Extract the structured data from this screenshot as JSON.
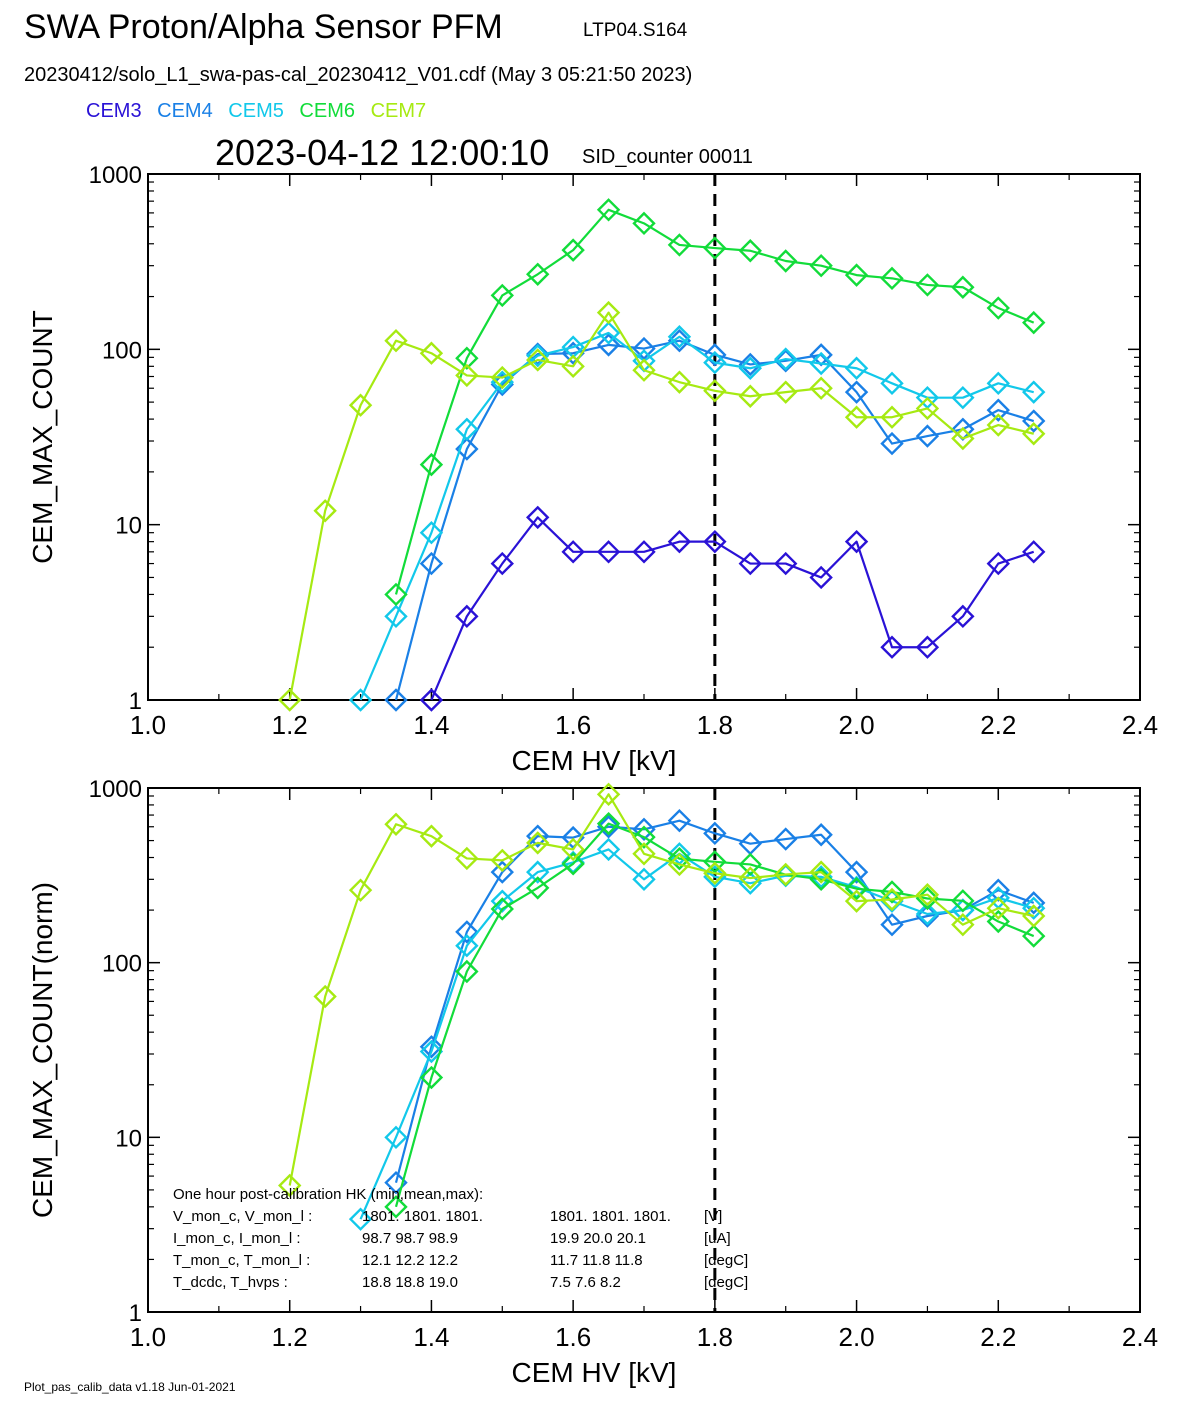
{
  "header": {
    "title": "SWA Proton/Alpha Sensor PFM",
    "title_id": "LTP04.S164",
    "file_line": "20230412/solo_L1_swa-pas-cal_20230412_V01.cdf  (May  3 05:21:50 2023)",
    "timestamp": "2023-04-12 12:00:10",
    "sid": "SID_counter 00011"
  },
  "legend": [
    {
      "name": "CEM3",
      "color": "#2a12d6"
    },
    {
      "name": "CEM4",
      "color": "#1a80e6"
    },
    {
      "name": "CEM5",
      "color": "#12c8ea"
    },
    {
      "name": "CEM6",
      "color": "#12dc3a"
    },
    {
      "name": "CEM7",
      "color": "#a6ea12"
    }
  ],
  "hk_text": {
    "heading": "One hour post-calibration HK (min,mean,max):",
    "rows": [
      {
        "label": "V_mon_c, V_mon_l :",
        "c": "1801.   1801.   1801.",
        "l": "1801.   1801.   1801.",
        "unit": "[V]"
      },
      {
        "label": "I_mon_c,  I_mon_l :",
        "c": "98.7    98.7    98.9",
        "l": "19.9    20.0    20.1",
        "unit": "[uA]"
      },
      {
        "label": "T_mon_c, T_mon_l :",
        "c": "12.1    12.2    12.2",
        "l": "11.7    11.8    11.8",
        "unit": "[degC]"
      },
      {
        "label": "T_dcdc,    T_hvps :",
        "c": "18.8    18.8    19.0",
        "l": "7.5     7.6     8.2",
        "unit": "[degC]"
      }
    ]
  },
  "footer": "Plot_pas_calib_data v1.18 Jun-01-2021",
  "chart_data": [
    {
      "type": "line",
      "xlabel": "CEM HV [kV]",
      "ylabel": "CEM_MAX_COUNT",
      "xlim": [
        1.0,
        2.4
      ],
      "ylim": [
        1,
        1000
      ],
      "yscale": "log",
      "xticks": [
        "1.0",
        "1.2",
        "1.4",
        "1.6",
        "1.8",
        "2.0",
        "2.2",
        "2.4"
      ],
      "yticks": [
        "1",
        "10",
        "100",
        "1000"
      ],
      "marker": "diamond",
      "vline": 1.8,
      "x": [
        1.2,
        1.25,
        1.3,
        1.35,
        1.4,
        1.45,
        1.5,
        1.55,
        1.6,
        1.65,
        1.7,
        1.75,
        1.8,
        1.85,
        1.9,
        1.95,
        2.0,
        2.05,
        2.1,
        2.15,
        2.2,
        2.25
      ],
      "series": [
        {
          "name": "CEM3",
          "values": [
            null,
            null,
            null,
            null,
            1,
            3,
            6,
            11,
            7,
            7,
            7,
            8,
            8,
            6,
            6,
            5,
            8,
            2,
            2,
            3,
            6,
            7
          ]
        },
        {
          "name": "CEM4",
          "values": [
            null,
            null,
            null,
            1,
            6,
            27,
            63,
            94,
            95,
            106,
            101,
            112,
            93,
            82,
            86,
            93,
            57,
            29,
            32,
            35,
            45,
            39
          ]
        },
        {
          "name": "CEM5",
          "values": [
            null,
            null,
            1,
            3,
            9,
            35,
            65,
            92,
            103,
            124,
            86,
            118,
            84,
            78,
            88,
            83,
            78,
            64,
            53,
            53,
            64,
            57
          ]
        },
        {
          "name": "CEM6",
          "values": [
            null,
            null,
            null,
            4,
            22,
            89,
            203,
            268,
            368,
            625,
            523,
            394,
            378,
            365,
            319,
            300,
            265,
            254,
            233,
            226,
            172,
            142
          ]
        },
        {
          "name": "CEM7",
          "values": [
            1,
            12,
            48,
            112,
            95,
            71,
            69,
            87,
            80,
            162,
            76,
            65,
            58,
            54,
            57,
            60,
            41,
            41,
            46,
            31,
            37,
            33
          ]
        }
      ]
    },
    {
      "type": "line",
      "xlabel": "CEM HV [kV]",
      "ylabel": "CEM_MAX_COUNT(norm)",
      "xlim": [
        1.0,
        2.4
      ],
      "ylim": [
        1,
        1000
      ],
      "yscale": "log",
      "xticks": [
        "1.0",
        "1.2",
        "1.4",
        "1.6",
        "1.8",
        "2.0",
        "2.2",
        "2.4"
      ],
      "yticks": [
        "1",
        "10",
        "100",
        "1000"
      ],
      "marker": "diamond",
      "vline": 1.8,
      "x": [
        1.2,
        1.25,
        1.3,
        1.35,
        1.4,
        1.45,
        1.5,
        1.55,
        1.6,
        1.65,
        1.7,
        1.75,
        1.8,
        1.85,
        1.9,
        1.95,
        2.0,
        2.05,
        2.1,
        2.15,
        2.2,
        2.25
      ],
      "series": [
        {
          "name": "CEM4",
          "values": [
            null,
            null,
            null,
            5.5,
            33,
            150,
            330,
            530,
            520,
            600,
            580,
            650,
            550,
            480,
            510,
            540,
            330,
            165,
            185,
            200,
            260,
            220
          ]
        },
        {
          "name": "CEM5",
          "values": [
            null,
            null,
            3.4,
            10,
            31,
            125,
            225,
            330,
            375,
            445,
            300,
            420,
            310,
            285,
            315,
            310,
            270,
            225,
            190,
            200,
            235,
            205
          ]
        },
        {
          "name": "CEM6",
          "values": [
            null,
            null,
            null,
            4,
            22,
            89,
            203,
            268,
            368,
            625,
            523,
            394,
            378,
            365,
            319,
            300,
            265,
            254,
            233,
            226,
            172,
            142
          ]
        },
        {
          "name": "CEM7",
          "values": [
            5.3,
            64,
            260,
            620,
            530,
            395,
            385,
            485,
            445,
            920,
            420,
            365,
            325,
            305,
            320,
            330,
            225,
            230,
            245,
            165,
            205,
            185
          ]
        }
      ]
    }
  ]
}
